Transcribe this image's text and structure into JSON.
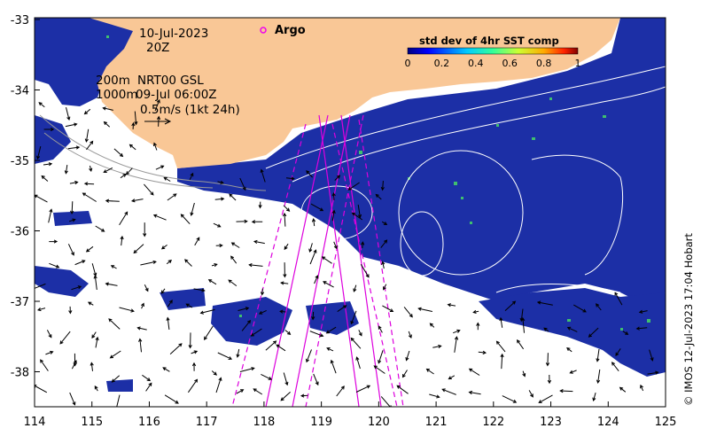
{
  "map": {
    "date": "10-Jul-2023",
    "time": "20Z",
    "argo_label": "Argo",
    "depth_label_1": "200m",
    "product_label": "NRT00 GSL",
    "depth_label_2": "1000m",
    "product_time": "09-Jul 06:00Z",
    "scale_label": "0.5m/s (1kt 24h)",
    "credit": "© IMOS 12-Jul-2023 17:04 Hobart",
    "colorbar": {
      "title": "std dev of 4hr SST comp",
      "ticks": [
        "0",
        "0.2",
        "0.4",
        "0.6",
        "0.8",
        "1"
      ]
    },
    "x_ticks": [
      "114",
      "115",
      "116",
      "117",
      "118",
      "119",
      "120",
      "121",
      "122",
      "123",
      "124",
      "125"
    ],
    "y_ticks": [
      "-33",
      "-34",
      "-35",
      "-36",
      "-37",
      "-38"
    ],
    "colors": {
      "land": "#f9c796",
      "ocean_data": "#1c2fa6",
      "argo": "#ee00ee",
      "track": "#dd00dd",
      "vector": "#000000",
      "contour": "#ffffff"
    }
  }
}
